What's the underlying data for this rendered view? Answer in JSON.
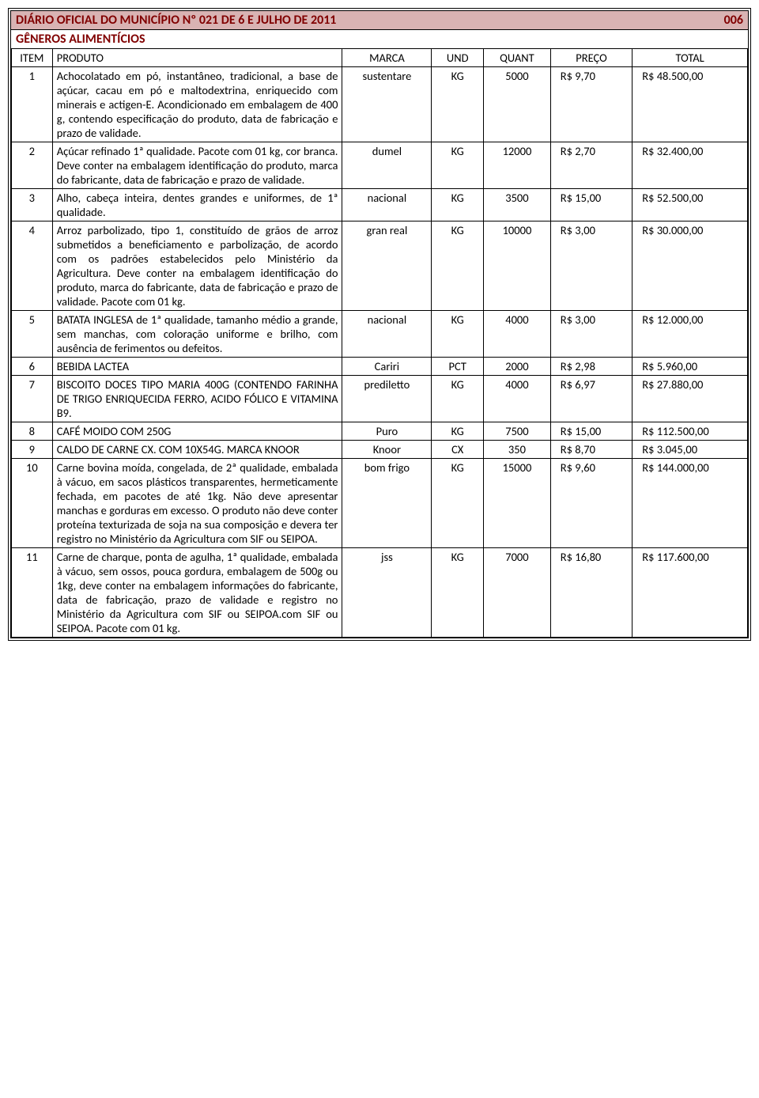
{
  "header": {
    "title": "DIÁRIO OFICIAL DO MUNICÍPIO Nº 021 DE 6 E JULHO DE 2011",
    "page_num": "006",
    "subtitle": "GÊNEROS ALIMENTÍCIOS"
  },
  "columns": [
    "ITEM",
    "PRODUTO",
    "MARCA",
    "UND",
    "QUANT",
    "PREÇO",
    "TOTAL"
  ],
  "rows": [
    {
      "item": "1",
      "produto": "Achocolatado em pó, instantâneo, tradicional, a base de açúcar, cacau em pó e maltodextrina, enriquecido com minerais e actigen-E. Acondicionado em embalagem de 400 g, contendo especificação do produto, data de fabricação e prazo de validade.",
      "marca": "sustentare",
      "und": "KG",
      "quant": "5000",
      "preco": "R$ 9,70",
      "total": "R$ 48.500,00"
    },
    {
      "item": "2",
      "produto": "Açúcar refinado 1ª qualidade. Pacote com 01 kg, cor branca. Deve conter na embalagem identificação do produto, marca do fabricante, data de fabricação e prazo de validade.",
      "marca": "dumel",
      "und": "KG",
      "quant": "12000",
      "preco": "R$ 2,70",
      "total": "R$ 32.400,00"
    },
    {
      "item": "3",
      "produto": "Alho, cabeça inteira, dentes grandes e uniformes, de 1ª qualidade.",
      "marca": "nacional",
      "und": "KG",
      "quant": "3500",
      "preco": "R$ 15,00",
      "total": "R$ 52.500,00"
    },
    {
      "item": "4",
      "produto": "Arroz parbolizado, tipo 1, constituído de grãos de arroz submetidos a beneficiamento e parbolização, de acordo com os padrões estabelecidos pelo Ministério da Agricultura. Deve conter na embalagem identificação do produto, marca do fabricante, data de fabricação e prazo de validade. Pacote com 01 kg.",
      "marca": "gran real",
      "und": "KG",
      "quant": "10000",
      "preco": "R$ 3,00",
      "total": "R$ 30.000,00"
    },
    {
      "item": "5",
      "produto": "BATATA INGLESA de 1ª qualidade, tamanho médio a grande, sem manchas, com coloração uniforme e brilho, com ausência de ferimentos ou defeitos.",
      "marca": "nacional",
      "und": "KG",
      "quant": "4000",
      "preco": "R$ 3,00",
      "total": "R$ 12.000,00"
    },
    {
      "item": "6",
      "produto": "BEBIDA LACTEA",
      "marca": "Cariri",
      "und": "PCT",
      "quant": "2000",
      "preco": "R$ 2,98",
      "total": "R$ 5.960,00"
    },
    {
      "item": "7",
      "produto": "BISCOITO DOCES TIPO MARIA 400G (CONTENDO FARINHA DE TRIGO ENRIQUECIDA FERRO, ACIDO FÓLICO E VITAMINA B9.",
      "marca": "prediletto",
      "und": "KG",
      "quant": "4000",
      "preco": "R$ 6,97",
      "total": "R$ 27.880,00"
    },
    {
      "item": "8",
      "produto": "CAFÉ MOIDO COM 250G",
      "marca": "Puro",
      "und": "KG",
      "quant": "7500",
      "preco": "R$ 15,00",
      "total": "R$ 112.500,00"
    },
    {
      "item": "9",
      "produto": "CALDO DE CARNE CX. COM 10X54G. MARCA KNOOR",
      "marca": "Knoor",
      "und": "CX",
      "quant": "350",
      "preco": "R$ 8,70",
      "total": "R$ 3.045,00"
    },
    {
      "item": "10",
      "produto": "Carne bovina moída, congelada, de 2ª qualidade, embalada à vácuo, em sacos plásticos transparentes, hermeticamente fechada, em pacotes de até 1kg. Não deve apresentar manchas e gorduras em excesso. O produto não deve conter proteína texturizada de soja na sua composição e devera ter registro no Ministério da Agricultura com SIF ou SEIPOA.",
      "marca": "bom frigo",
      "und": "KG",
      "quant": "15000",
      "preco": "R$ 9,60",
      "total": "R$ 144.000,00"
    },
    {
      "item": "11",
      "produto": "Carne de charque, ponta de agulha, 1ª qualidade, embalada à vácuo, sem ossos, pouca gordura, embalagem de 500g ou 1kg, deve conter na embalagem informações do fabricante, data de fabricação, prazo de validade e registro no Ministério da Agricultura com SIF ou SEIPOA.com SIF ou SEIPOA. Pacote com 01 kg.",
      "marca": "jss",
      "und": "KG",
      "quant": "7000",
      "preco": "R$ 16,80",
      "total": "R$ 117.600,00"
    }
  ],
  "style": {
    "header_bg": "#d9b3b3",
    "header_color": "#800000",
    "border_color": "#000000",
    "font_family": "Calibri, Arial, sans-serif"
  }
}
